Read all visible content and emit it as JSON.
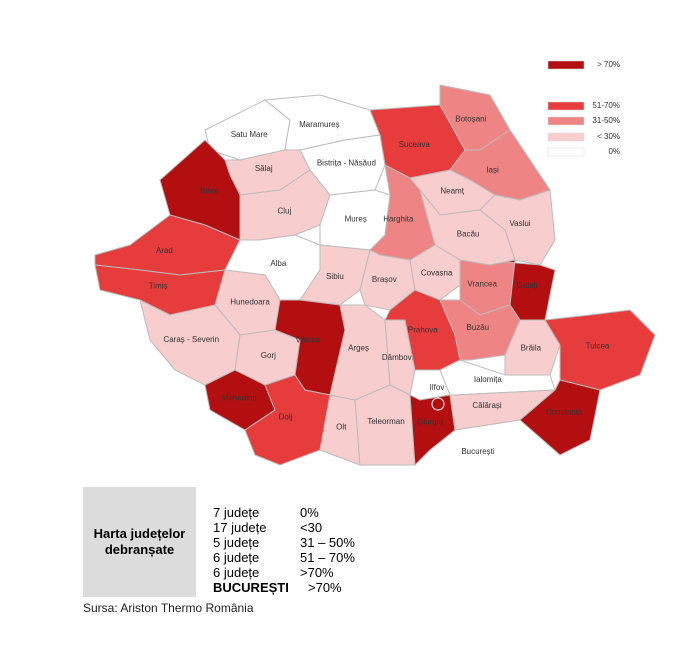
{
  "legend": [
    {
      "label": "> 70%",
      "color": "#b30f10"
    },
    {
      "label": "51-70%",
      "color": "#e63c3b"
    },
    {
      "label": "31-50%",
      "color": "#ee8584"
    },
    {
      "label": "< 30%",
      "color": "#f8cdcd"
    },
    {
      "label": "0%",
      "color": "#ffffff"
    }
  ],
  "counties": [
    {
      "name": "Satu Mare",
      "color": "#ffffff"
    },
    {
      "name": "Maramureș",
      "color": "#ffffff"
    },
    {
      "name": "Suceava",
      "color": "#e63c3b"
    },
    {
      "name": "Botoșani",
      "color": "#ee8584"
    },
    {
      "name": "Iași",
      "color": "#ee8584"
    },
    {
      "name": "Bistrița - Năsăud",
      "color": "#ffffff"
    },
    {
      "name": "Sălaj",
      "color": "#f8cdcd"
    },
    {
      "name": "Bihor",
      "color": "#b30f10"
    },
    {
      "name": "Cluj",
      "color": "#f8cdcd"
    },
    {
      "name": "Mureș",
      "color": "#ffffff"
    },
    {
      "name": "Harghita",
      "color": "#ee8584"
    },
    {
      "name": "Neamț",
      "color": "#f8cdcd"
    },
    {
      "name": "Vaslui",
      "color": "#f8cdcd"
    },
    {
      "name": "Bacău",
      "color": "#f8cdcd"
    },
    {
      "name": "Arad",
      "color": "#e63c3b"
    },
    {
      "name": "Alba",
      "color": "#ffffff"
    },
    {
      "name": "Timiș",
      "color": "#e63c3b"
    },
    {
      "name": "Hunedoara",
      "color": "#f8cdcd"
    },
    {
      "name": "Sibiu",
      "color": "#f8cdcd"
    },
    {
      "name": "Brașov",
      "color": "#f8cdcd"
    },
    {
      "name": "Covasna",
      "color": "#f8cdcd"
    },
    {
      "name": "Vrancea",
      "color": "#ee8584"
    },
    {
      "name": "Galați",
      "color": "#b30f10"
    },
    {
      "name": "Caraș - Severin",
      "color": "#f8cdcd"
    },
    {
      "name": "Gorj",
      "color": "#f8cdcd"
    },
    {
      "name": "Vâlcea",
      "color": "#b30f10"
    },
    {
      "name": "Argeș",
      "color": "#f8cdcd"
    },
    {
      "name": "Dâmbovița",
      "color": "#f8cdcd"
    },
    {
      "name": "Prahova",
      "color": "#e63c3b"
    },
    {
      "name": "Buzău",
      "color": "#ee8584"
    },
    {
      "name": "Brăila",
      "color": "#f8cdcd"
    },
    {
      "name": "Tulcea",
      "color": "#e63c3b"
    },
    {
      "name": "Mehedinți",
      "color": "#b30f10"
    },
    {
      "name": "Dolj",
      "color": "#e63c3b"
    },
    {
      "name": "Olt",
      "color": "#f8cdcd"
    },
    {
      "name": "Teleorman",
      "color": "#f8cdcd"
    },
    {
      "name": "Ilfov",
      "color": "#ffffff"
    },
    {
      "name": "Giurgiu",
      "color": "#b30f10"
    },
    {
      "name": "Ialomița",
      "color": "#ffffff"
    },
    {
      "name": "Călărași",
      "color": "#f8cdcd"
    },
    {
      "name": "Constanța",
      "color": "#b30f10"
    },
    {
      "name": "București",
      "color": "#b30f10"
    }
  ],
  "summary": {
    "title": "Harta județelor debranșate",
    "rows": [
      [
        "7 județe",
        "0%"
      ],
      [
        "17 județe",
        "<30"
      ],
      [
        "5  județe",
        "31 – 50%"
      ],
      [
        "6 județe",
        "51 – 70%"
      ],
      [
        "6 județe",
        ">70%"
      ],
      [
        "BUCUREȘTI",
        ">70%"
      ]
    ]
  },
  "source": "Sursa: Ariston Thermo România"
}
